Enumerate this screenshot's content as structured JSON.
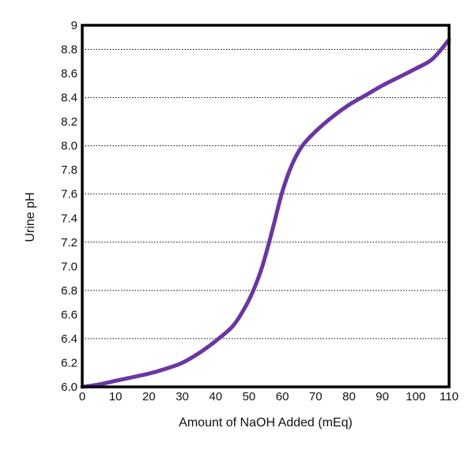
{
  "chart_data": {
    "type": "line",
    "title": "",
    "xlabel": "Amount of NaOH Added (mEq)",
    "ylabel": "Urine pH",
    "xlim": [
      0,
      110
    ],
    "ylim": [
      6.0,
      9.0
    ],
    "x_ticks": [
      0,
      10,
      20,
      30,
      40,
      50,
      60,
      70,
      80,
      90,
      100,
      110
    ],
    "x_tick_labels": [
      "0",
      "10",
      "20",
      "30",
      "40",
      "50",
      "60",
      "70",
      "80",
      "90",
      "100",
      "110"
    ],
    "y_ticks": [
      6.0,
      6.2,
      6.4,
      6.6,
      6.8,
      7.0,
      7.2,
      7.4,
      7.6,
      7.8,
      8.0,
      8.2,
      8.4,
      8.6,
      8.8,
      9.0
    ],
    "y_tick_labels": [
      "6.0",
      "6.2",
      "6.4",
      "6.6",
      "6.8",
      "7.0",
      "7.2",
      "7.4",
      "7.6",
      "7.8",
      "8.0",
      "8.2",
      "8.4",
      "8.6",
      "8.8",
      "9"
    ],
    "gridlines_y": [
      6.4,
      6.8,
      7.2,
      7.6,
      8.0,
      8.4,
      8.8
    ],
    "grid": "horizontal dotted",
    "legend": "none",
    "series": [
      {
        "color": "#6b35a6",
        "points": [
          [
            0,
            6.0
          ],
          [
            5,
            6.02
          ],
          [
            10,
            6.05
          ],
          [
            15,
            6.08
          ],
          [
            20,
            6.11
          ],
          [
            25,
            6.15
          ],
          [
            30,
            6.2
          ],
          [
            35,
            6.28
          ],
          [
            40,
            6.38
          ],
          [
            45,
            6.5
          ],
          [
            48,
            6.62
          ],
          [
            51,
            6.78
          ],
          [
            54,
            7.0
          ],
          [
            57,
            7.3
          ],
          [
            60,
            7.62
          ],
          [
            63,
            7.85
          ],
          [
            66,
            8.0
          ],
          [
            70,
            8.12
          ],
          [
            75,
            8.24
          ],
          [
            80,
            8.34
          ],
          [
            85,
            8.42
          ],
          [
            90,
            8.5
          ],
          [
            95,
            8.57
          ],
          [
            100,
            8.64
          ],
          [
            105,
            8.72
          ],
          [
            110,
            8.88
          ]
        ]
      }
    ]
  }
}
